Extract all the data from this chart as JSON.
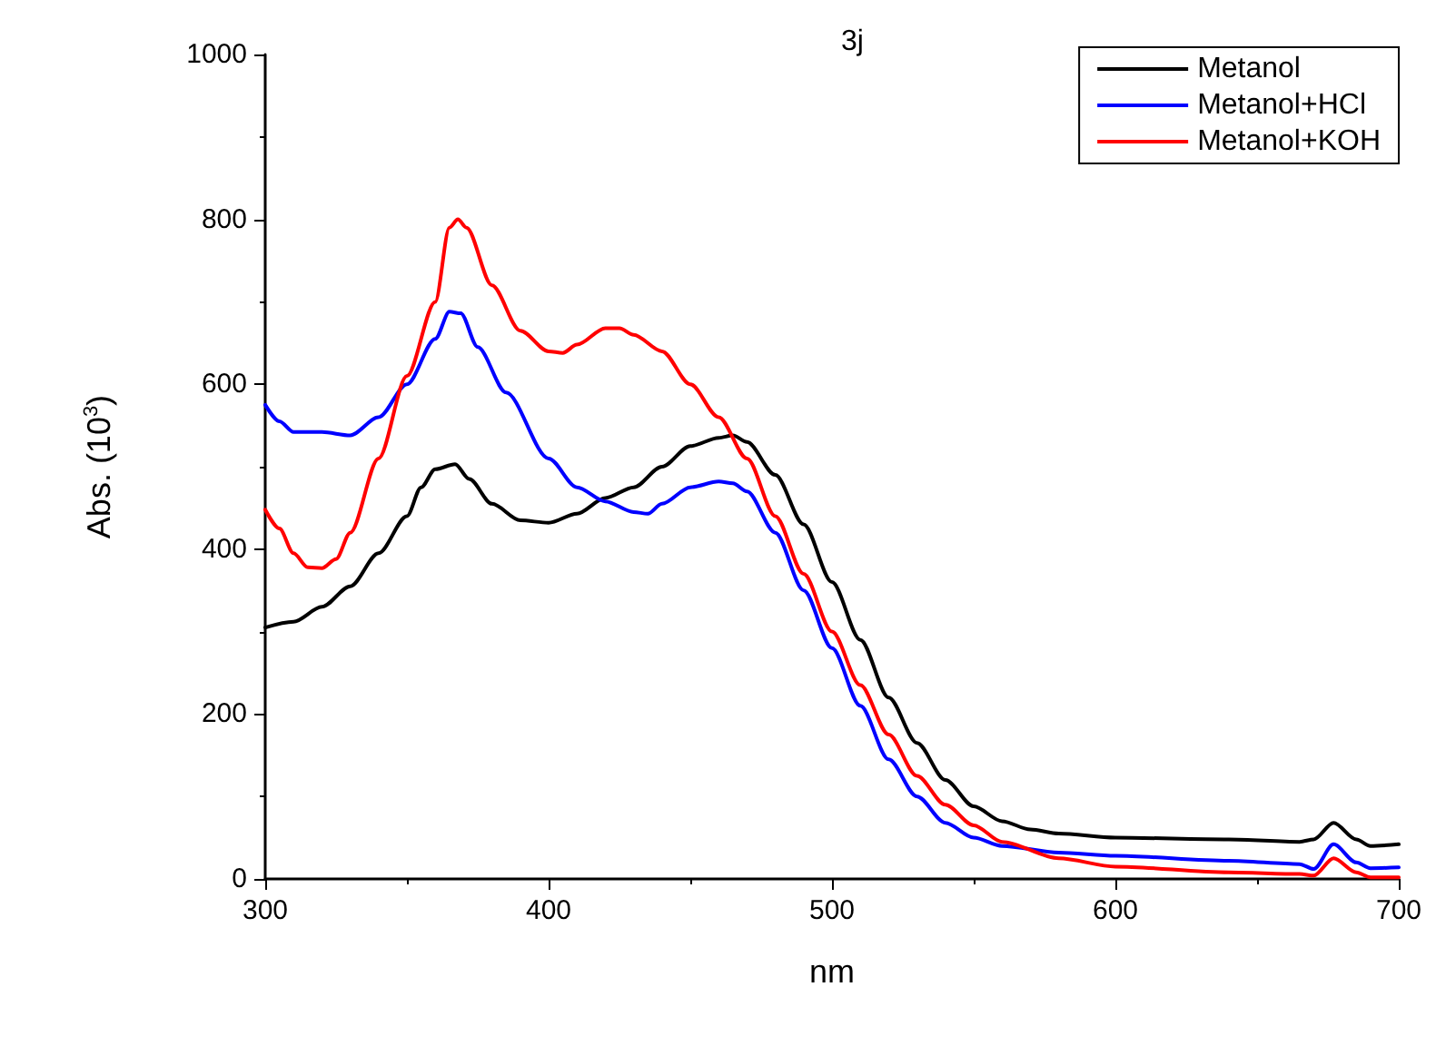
{
  "chart_data": {
    "type": "line",
    "title": "3j",
    "xlabel": "nm",
    "ylabel": "Abs. (10$^{3}$)",
    "xlim": [
      300,
      700
    ],
    "xticks": [
      300,
      400,
      500,
      600,
      700
    ],
    "ylim": [
      0,
      1000
    ],
    "yticks": [
      0,
      200,
      400,
      600,
      800,
      1000
    ],
    "grid": false,
    "legend": "top right",
    "marker": "none",
    "line_style": "solid",
    "series": [
      {
        "name": "Metanol",
        "color": "#000000",
        "x": [
          300,
          310,
          320,
          330,
          340,
          350,
          355,
          360,
          367,
          372,
          380,
          390,
          400,
          410,
          420,
          430,
          440,
          450,
          460,
          465,
          470,
          480,
          490,
          500,
          510,
          520,
          530,
          540,
          550,
          560,
          570,
          580,
          600,
          640,
          665,
          670,
          677,
          685,
          690,
          700
        ],
        "values": [
          305,
          312,
          330,
          355,
          395,
          440,
          475,
          497,
          503,
          485,
          455,
          435,
          432,
          443,
          462,
          475,
          500,
          525,
          535,
          538,
          530,
          490,
          430,
          360,
          290,
          220,
          165,
          120,
          88,
          70,
          60,
          55,
          50,
          48,
          45,
          48,
          68,
          48,
          40,
          42
        ]
      },
      {
        "name": "Metanol+HCl",
        "color": "#0000ff",
        "x": [
          300,
          305,
          310,
          320,
          330,
          340,
          350,
          360,
          365,
          369,
          375,
          385,
          400,
          410,
          420,
          430,
          435,
          440,
          450,
          460,
          465,
          470,
          480,
          490,
          500,
          510,
          520,
          530,
          540,
          550,
          560,
          580,
          600,
          640,
          665,
          670,
          677,
          685,
          690,
          700
        ],
        "values": [
          575,
          555,
          542,
          542,
          538,
          560,
          600,
          655,
          688,
          686,
          645,
          590,
          510,
          475,
          458,
          445,
          443,
          455,
          475,
          482,
          480,
          470,
          420,
          350,
          280,
          210,
          145,
          100,
          68,
          50,
          40,
          32,
          28,
          22,
          18,
          12,
          42,
          20,
          13,
          14
        ]
      },
      {
        "name": "Metanol+KOH",
        "color": "#ff0000",
        "x": [
          300,
          305,
          310,
          315,
          320,
          325,
          330,
          340,
          350,
          360,
          365,
          368,
          371,
          380,
          390,
          400,
          405,
          410,
          420,
          425,
          430,
          440,
          450,
          460,
          470,
          480,
          490,
          500,
          510,
          520,
          530,
          540,
          550,
          560,
          580,
          600,
          640,
          665,
          670,
          677,
          685,
          690,
          700
        ],
        "values": [
          448,
          425,
          395,
          378,
          377,
          388,
          420,
          510,
          610,
          700,
          790,
          800,
          790,
          720,
          665,
          640,
          638,
          648,
          668,
          668,
          660,
          640,
          600,
          560,
          510,
          440,
          370,
          300,
          235,
          175,
          125,
          90,
          65,
          45,
          25,
          15,
          8,
          6,
          4,
          25,
          8,
          2,
          2
        ]
      }
    ]
  }
}
